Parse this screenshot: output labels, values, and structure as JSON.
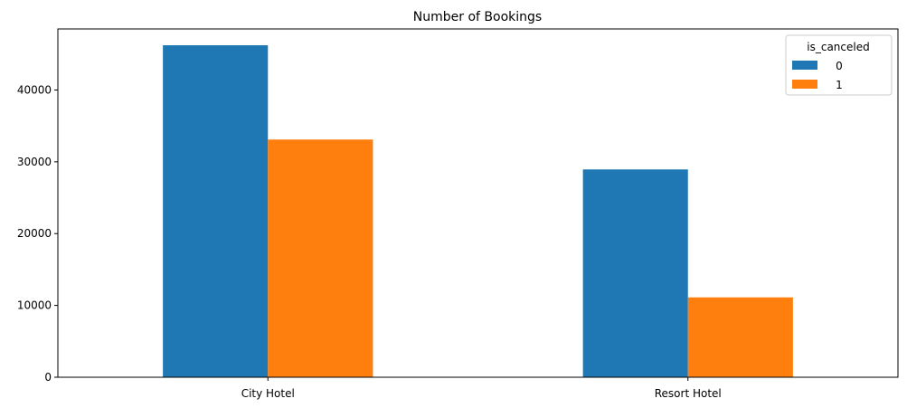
{
  "chart_data": {
    "type": "bar",
    "title": "Number of Bookings",
    "xlabel": "",
    "ylabel": "",
    "categories": [
      "City Hotel",
      "Resort Hotel"
    ],
    "series": [
      {
        "name": "0",
        "values": [
          46228,
          28938
        ],
        "color": "#1f77b4"
      },
      {
        "name": "1",
        "values": [
          33102,
          11122
        ],
        "color": "#ff7f0e"
      }
    ],
    "ylim": [
      0,
      48500
    ],
    "yticks": [
      0,
      10000,
      20000,
      30000,
      40000
    ],
    "ytick_labels": [
      "0",
      "10000",
      "20000",
      "30000",
      "40000"
    ],
    "legend": {
      "title": "is_canceled",
      "placement": "top-right"
    },
    "grid": false
  }
}
